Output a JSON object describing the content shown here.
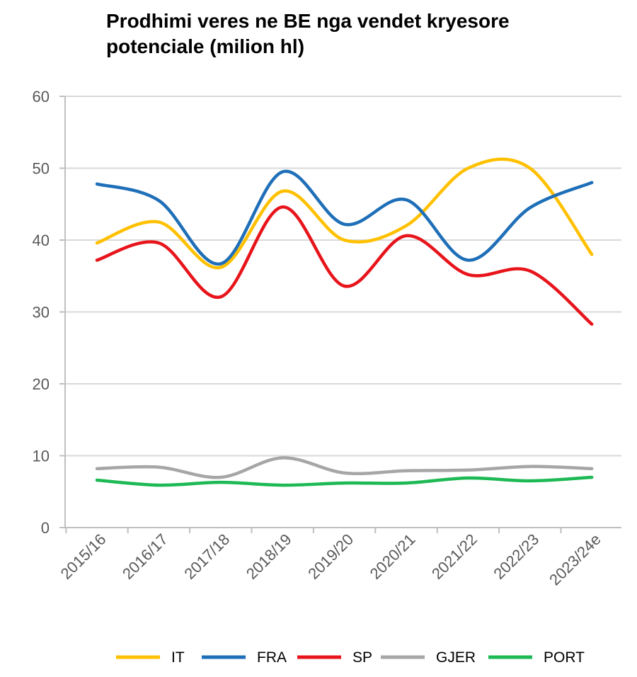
{
  "chart_data": {
    "type": "line",
    "title": "Prodhimi veres ne BE nga vendet kryesore potenciale (milion hl)",
    "xlabel": "",
    "ylabel": "",
    "categories": [
      "2015/16",
      "2016/17",
      "2017/18",
      "2018/19",
      "2019/20",
      "2020/21",
      "2021/22",
      "2022/23",
      "2023/24e"
    ],
    "ylim": [
      0,
      60
    ],
    "yticks": [
      0,
      10,
      20,
      30,
      40,
      50,
      60
    ],
    "grid": true,
    "legend_position": "bottom",
    "series": [
      {
        "name": "IT",
        "color": "#ffc000",
        "values": [
          39.6,
          42.5,
          36.2,
          46.8,
          40.0,
          42.0,
          50.0,
          50.0,
          38.0
        ]
      },
      {
        "name": "FRA",
        "color": "#1f6fb8",
        "values": [
          47.8,
          45.5,
          36.7,
          49.5,
          42.2,
          45.6,
          37.2,
          44.5,
          48.0
        ]
      },
      {
        "name": "SP",
        "color": "#e8141b",
        "values": [
          37.2,
          39.6,
          32.1,
          44.6,
          33.6,
          40.6,
          35.2,
          35.7,
          28.3
        ]
      },
      {
        "name": "GJER",
        "color": "#a6a6a6",
        "values": [
          8.2,
          8.4,
          7.0,
          9.7,
          7.6,
          7.9,
          8.0,
          8.5,
          8.2
        ]
      },
      {
        "name": "PORT",
        "color": "#1db954",
        "values": [
          6.6,
          5.9,
          6.3,
          5.9,
          6.2,
          6.2,
          6.9,
          6.5,
          7.0
        ]
      }
    ]
  }
}
